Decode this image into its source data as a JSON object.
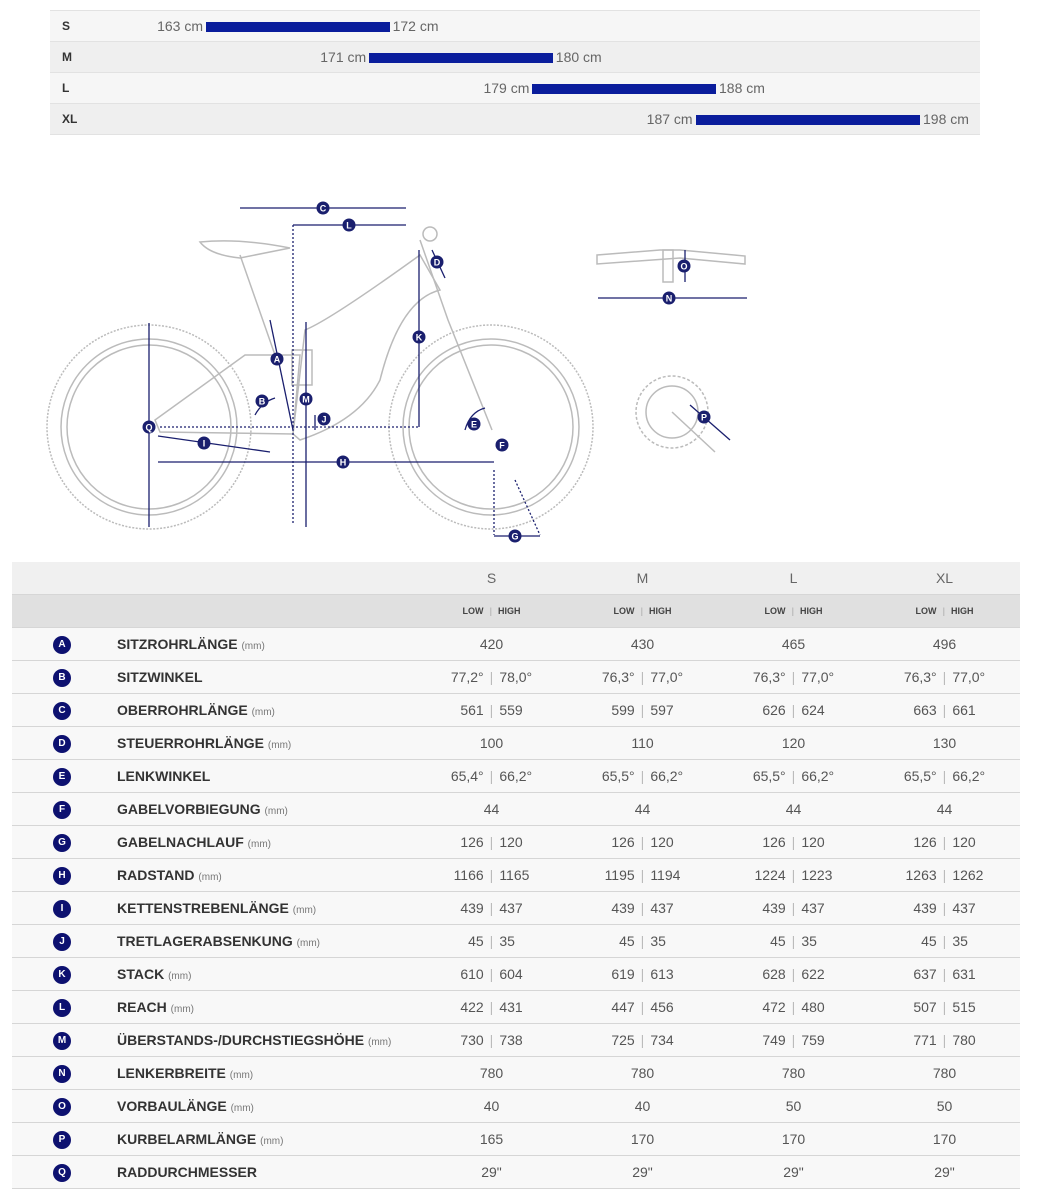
{
  "height_chart": {
    "unit": "cm",
    "scale_min": 163,
    "scale_max": 198,
    "bar_color": "#0a1d9c",
    "rows": [
      {
        "size": "S",
        "min": "163 cm",
        "max": "172 cm",
        "from": 163,
        "to": 172
      },
      {
        "size": "M",
        "min": "171 cm",
        "max": "180 cm",
        "from": 171,
        "to": 180
      },
      {
        "size": "L",
        "min": "179 cm",
        "max": "188 cm",
        "from": 179,
        "to": 188
      },
      {
        "size": "XL",
        "min": "187 cm",
        "max": "198 cm",
        "from": 187,
        "to": 198
      }
    ]
  },
  "diagram": {
    "labels": [
      "A",
      "B",
      "C",
      "D",
      "E",
      "F",
      "G",
      "H",
      "I",
      "J",
      "K",
      "L",
      "M",
      "N",
      "O",
      "P",
      "Q"
    ],
    "color": "#1a1f6e"
  },
  "geometry": {
    "sizes": [
      "S",
      "M",
      "L",
      "XL"
    ],
    "low": "LOW",
    "high": "HIGH",
    "sep": "|",
    "rows": [
      {
        "key": "A",
        "label": "SITZROHRLÄNGE",
        "unit": "(mm)",
        "values": [
          [
            "420"
          ],
          [
            "430"
          ],
          [
            "465"
          ],
          [
            "496"
          ]
        ]
      },
      {
        "key": "B",
        "label": "SITZWINKEL",
        "unit": "",
        "values": [
          [
            "77,2°",
            "78,0°"
          ],
          [
            "76,3°",
            "77,0°"
          ],
          [
            "76,3°",
            "77,0°"
          ],
          [
            "76,3°",
            "77,0°"
          ]
        ]
      },
      {
        "key": "C",
        "label": "OBERROHRLÄNGE",
        "unit": "(mm)",
        "values": [
          [
            "561",
            "559"
          ],
          [
            "599",
            "597"
          ],
          [
            "626",
            "624"
          ],
          [
            "663",
            "661"
          ]
        ]
      },
      {
        "key": "D",
        "label": "STEUERROHRLÄNGE",
        "unit": "(mm)",
        "values": [
          [
            "100"
          ],
          [
            "110"
          ],
          [
            "120"
          ],
          [
            "130"
          ]
        ]
      },
      {
        "key": "E",
        "label": "LENKWINKEL",
        "unit": "",
        "values": [
          [
            "65,4°",
            "66,2°"
          ],
          [
            "65,5°",
            "66,2°"
          ],
          [
            "65,5°",
            "66,2°"
          ],
          [
            "65,5°",
            "66,2°"
          ]
        ]
      },
      {
        "key": "F",
        "label": "GABELVORBIEGUNG",
        "unit": "(mm)",
        "values": [
          [
            "44"
          ],
          [
            "44"
          ],
          [
            "44"
          ],
          [
            "44"
          ]
        ]
      },
      {
        "key": "G",
        "label": "GABELNACHLAUF",
        "unit": "(mm)",
        "values": [
          [
            "126",
            "120"
          ],
          [
            "126",
            "120"
          ],
          [
            "126",
            "120"
          ],
          [
            "126",
            "120"
          ]
        ]
      },
      {
        "key": "H",
        "label": "RADSTAND",
        "unit": "(mm)",
        "values": [
          [
            "1166",
            "1165"
          ],
          [
            "1195",
            "1194"
          ],
          [
            "1224",
            "1223"
          ],
          [
            "1263",
            "1262"
          ]
        ]
      },
      {
        "key": "I",
        "label": "KETTENSTREBENLÄNGE",
        "unit": "(mm)",
        "values": [
          [
            "439",
            "437"
          ],
          [
            "439",
            "437"
          ],
          [
            "439",
            "437"
          ],
          [
            "439",
            "437"
          ]
        ]
      },
      {
        "key": "J",
        "label": "TRETLAGERABSENKUNG",
        "unit": "(mm)",
        "values": [
          [
            "45",
            "35"
          ],
          [
            "45",
            "35"
          ],
          [
            "45",
            "35"
          ],
          [
            "45",
            "35"
          ]
        ]
      },
      {
        "key": "K",
        "label": "STACK",
        "unit": "(mm)",
        "values": [
          [
            "610",
            "604"
          ],
          [
            "619",
            "613"
          ],
          [
            "628",
            "622"
          ],
          [
            "637",
            "631"
          ]
        ]
      },
      {
        "key": "L",
        "label": "REACH",
        "unit": "(mm)",
        "values": [
          [
            "422",
            "431"
          ],
          [
            "447",
            "456"
          ],
          [
            "472",
            "480"
          ],
          [
            "507",
            "515"
          ]
        ]
      },
      {
        "key": "M",
        "label": "ÜBERSTANDS-/DURCHSTIEGSHÖHE",
        "unit": "(mm)",
        "values": [
          [
            "730",
            "738"
          ],
          [
            "725",
            "734"
          ],
          [
            "749",
            "759"
          ],
          [
            "771",
            "780"
          ]
        ]
      },
      {
        "key": "N",
        "label": "LENKERBREITE",
        "unit": "(mm)",
        "values": [
          [
            "780"
          ],
          [
            "780"
          ],
          [
            "780"
          ],
          [
            "780"
          ]
        ]
      },
      {
        "key": "O",
        "label": "VORBAULÄNGE",
        "unit": "(mm)",
        "values": [
          [
            "40"
          ],
          [
            "40"
          ],
          [
            "50"
          ],
          [
            "50"
          ]
        ]
      },
      {
        "key": "P",
        "label": "KURBELARMLÄNGE",
        "unit": "(mm)",
        "values": [
          [
            "165"
          ],
          [
            "170"
          ],
          [
            "170"
          ],
          [
            "170"
          ]
        ]
      },
      {
        "key": "Q",
        "label": "RADDURCHMESSER",
        "unit": "",
        "values": [
          [
            "29\""
          ],
          [
            "29\""
          ],
          [
            "29\""
          ],
          [
            "29\""
          ]
        ]
      }
    ]
  }
}
